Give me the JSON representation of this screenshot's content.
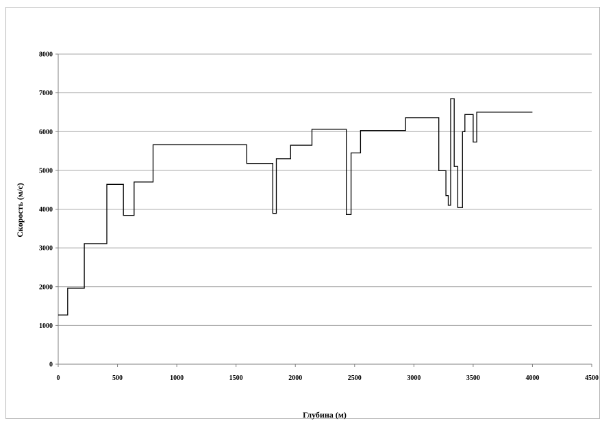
{
  "chart_data": {
    "type": "line",
    "step": true,
    "title": "",
    "xlabel": "Глубина (м)",
    "ylabel": "Скорость (м/с)",
    "xlim": [
      0,
      4500
    ],
    "ylim": [
      0,
      8000
    ],
    "x_ticks": [
      0,
      500,
      1000,
      1500,
      2000,
      2500,
      3000,
      3500,
      4000,
      4500
    ],
    "y_ticks": [
      0,
      1000,
      2000,
      3000,
      4000,
      5000,
      6000,
      7000,
      8000
    ],
    "grid": "horizontal",
    "legend": "none",
    "line_color": "#000000",
    "series": [
      {
        "x": [
          0,
          80,
          80,
          220,
          220,
          410,
          410,
          550,
          550,
          640,
          640,
          800,
          800,
          1590,
          1590,
          1810,
          1810,
          1840,
          1840,
          1960,
          1960,
          2140,
          2140,
          2430,
          2430,
          2470,
          2470,
          2550,
          2550,
          2930,
          2930,
          3210,
          3210,
          3270,
          3270,
          3290,
          3290,
          3310,
          3310,
          3340,
          3340,
          3370,
          3370,
          3410,
          3410,
          3430,
          3430,
          3500,
          3500,
          3530,
          3530,
          3560,
          3560,
          4000
        ],
        "y": [
          1270,
          1270,
          1960,
          1960,
          3110,
          3110,
          4640,
          4640,
          3840,
          3840,
          4700,
          4700,
          5660,
          5660,
          5180,
          5180,
          3890,
          3890,
          5300,
          5300,
          5650,
          5650,
          6060,
          6060,
          3860,
          3860,
          5450,
          5450,
          6030,
          6030,
          6360,
          6360,
          4990,
          4990,
          4350,
          4350,
          4100,
          4100,
          6850,
          6850,
          5100,
          5100,
          4040,
          4040,
          6000,
          6000,
          6440,
          6440,
          5730,
          5730,
          6500,
          6500,
          6500,
          6500
        ]
      }
    ]
  }
}
